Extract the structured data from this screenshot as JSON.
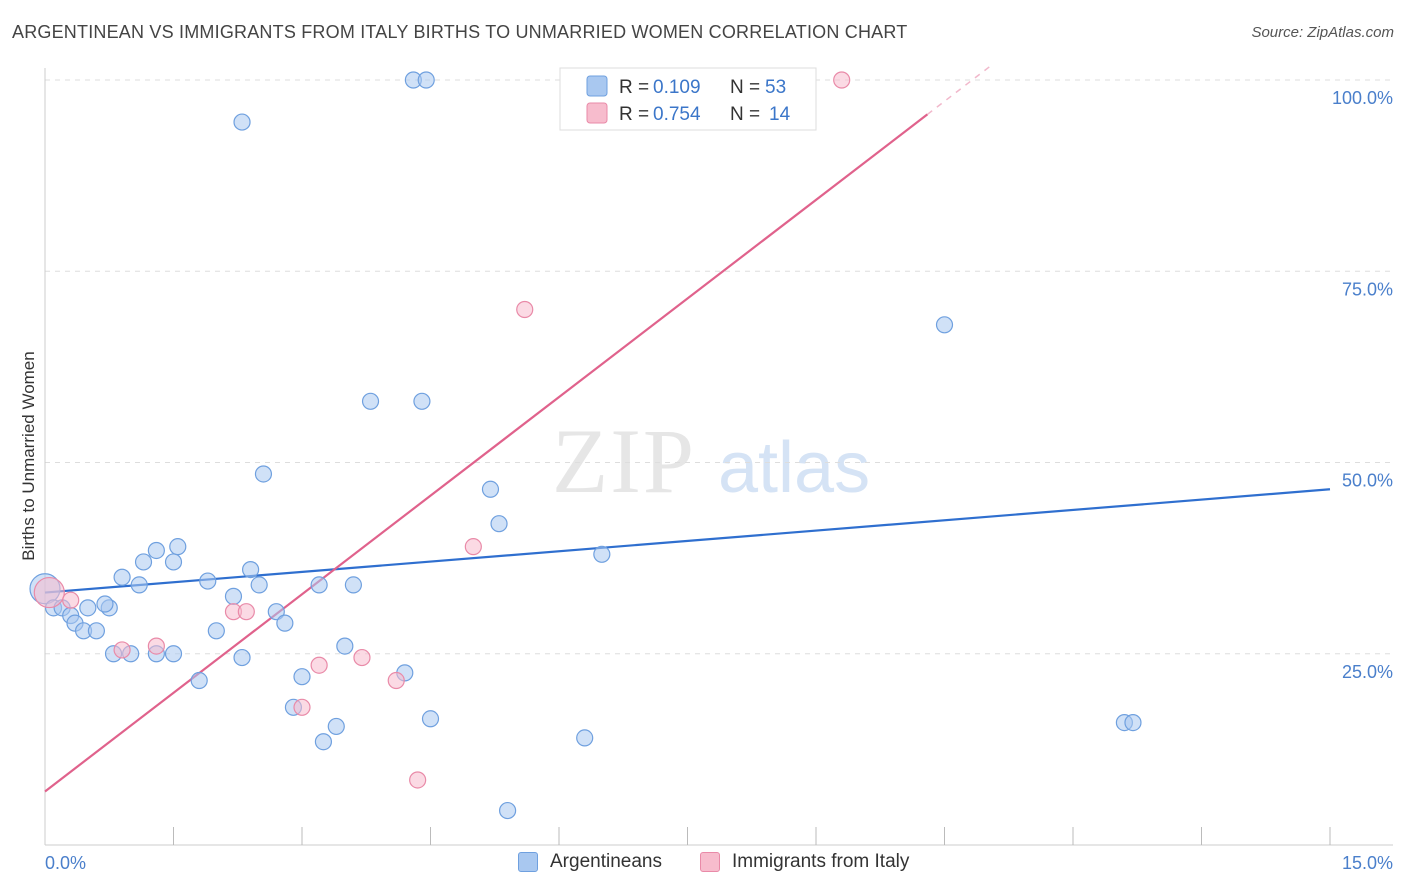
{
  "title": "ARGENTINEAN VS IMMIGRANTS FROM ITALY BIRTHS TO UNMARRIED WOMEN CORRELATION CHART",
  "source": "Source: ZipAtlas.com",
  "watermark": {
    "part1": "ZIP",
    "part2": "atlas"
  },
  "legend_top": {
    "rows": [
      {
        "r_label": "R =",
        "r_value": "0.109",
        "n_label": "N =",
        "n_value": "53"
      },
      {
        "r_label": "R =",
        "r_value": "0.754",
        "n_label": "N =",
        "n_value": "14"
      }
    ]
  },
  "colors": {
    "blue_fill": "#a9c8f0",
    "blue_stroke": "#6fa0df",
    "blue_line": "#2f6fcf",
    "pink_fill": "#f7bccd",
    "pink_stroke": "#e98aa8",
    "pink_line": "#e0628c",
    "tick_text": "#4a7fcb",
    "grid": "#dddddd"
  },
  "chart_data": {
    "type": "scatter",
    "title": "ARGENTINEAN VS IMMIGRANTS FROM ITALY BIRTHS TO UNMARRIED WOMEN CORRELATION CHART",
    "xlabel": "",
    "ylabel": "Births to Unmarried Women",
    "xlim": [
      0,
      15
    ],
    "ylim": [
      0,
      100
    ],
    "x_tick_labels": [
      "0.0%",
      "15.0%"
    ],
    "y_ticks": [
      25,
      50,
      75,
      100
    ],
    "y_tick_labels": [
      "25.0%",
      "50.0%",
      "75.0%",
      "100.0%"
    ],
    "grid": true,
    "legend_position": "top-center",
    "series": [
      {
        "name": "Argentineans",
        "color": "#a9c8f0",
        "points": [
          [
            0.0,
            33.5
          ],
          [
            0.1,
            31.0
          ],
          [
            0.2,
            31.0
          ],
          [
            0.3,
            30.0
          ],
          [
            0.35,
            29.0
          ],
          [
            0.45,
            28.0
          ],
          [
            0.5,
            31.0
          ],
          [
            0.6,
            28.0
          ],
          [
            0.75,
            31.0
          ],
          [
            0.8,
            25.0
          ],
          [
            0.9,
            35.0
          ],
          [
            1.0,
            25.0
          ],
          [
            1.1,
            34.0
          ],
          [
            1.15,
            37.0
          ],
          [
            1.3,
            38.5
          ],
          [
            1.5,
            37.0
          ],
          [
            1.55,
            39.0
          ],
          [
            1.5,
            25.0
          ],
          [
            1.8,
            21.5
          ],
          [
            1.9,
            34.5
          ],
          [
            2.0,
            28.0
          ],
          [
            2.2,
            32.5
          ],
          [
            2.3,
            24.5
          ],
          [
            2.4,
            36.0
          ],
          [
            2.5,
            34.0
          ],
          [
            2.55,
            48.5
          ],
          [
            2.7,
            30.5
          ],
          [
            2.8,
            29.0
          ],
          [
            2.9,
            18.0
          ],
          [
            3.0,
            22.0
          ],
          [
            3.2,
            34.0
          ],
          [
            3.25,
            13.5
          ],
          [
            3.4,
            15.5
          ],
          [
            3.5,
            26.0
          ],
          [
            3.6,
            34.0
          ],
          [
            3.8,
            58.0
          ],
          [
            4.2,
            22.5
          ],
          [
            4.4,
            58.0
          ],
          [
            4.5,
            16.5
          ],
          [
            5.2,
            46.5
          ],
          [
            5.3,
            42.0
          ],
          [
            5.4,
            4.5
          ],
          [
            6.3,
            14.0
          ],
          [
            6.5,
            38.0
          ],
          [
            10.5,
            68.0
          ],
          [
            12.6,
            16.0
          ],
          [
            12.7,
            16.0
          ],
          [
            2.3,
            94.5
          ],
          [
            4.3,
            100.0
          ],
          [
            4.45,
            100.0
          ],
          [
            7.5,
            100.0
          ],
          [
            1.3,
            25.0
          ],
          [
            0.7,
            31.5
          ]
        ]
      },
      {
        "name": "Immigrants from Italy",
        "color": "#f7bccd",
        "points": [
          [
            0.05,
            33.0
          ],
          [
            0.9,
            25.5
          ],
          [
            1.3,
            26.0
          ],
          [
            2.2,
            30.5
          ],
          [
            2.35,
            30.5
          ],
          [
            3.0,
            18.0
          ],
          [
            3.2,
            23.5
          ],
          [
            3.7,
            24.5
          ],
          [
            4.1,
            21.5
          ],
          [
            4.35,
            8.5
          ],
          [
            5.0,
            39.0
          ],
          [
            5.6,
            70.0
          ],
          [
            9.3,
            100.0
          ],
          [
            0.3,
            32.0
          ]
        ]
      }
    ],
    "trend_lines": [
      {
        "series": "Argentineans",
        "x": [
          0,
          15
        ],
        "y": [
          33.0,
          46.5
        ]
      },
      {
        "series": "Immigrants from Italy",
        "x": [
          0,
          10.3
        ],
        "y": [
          7.0,
          95.5
        ]
      }
    ]
  }
}
